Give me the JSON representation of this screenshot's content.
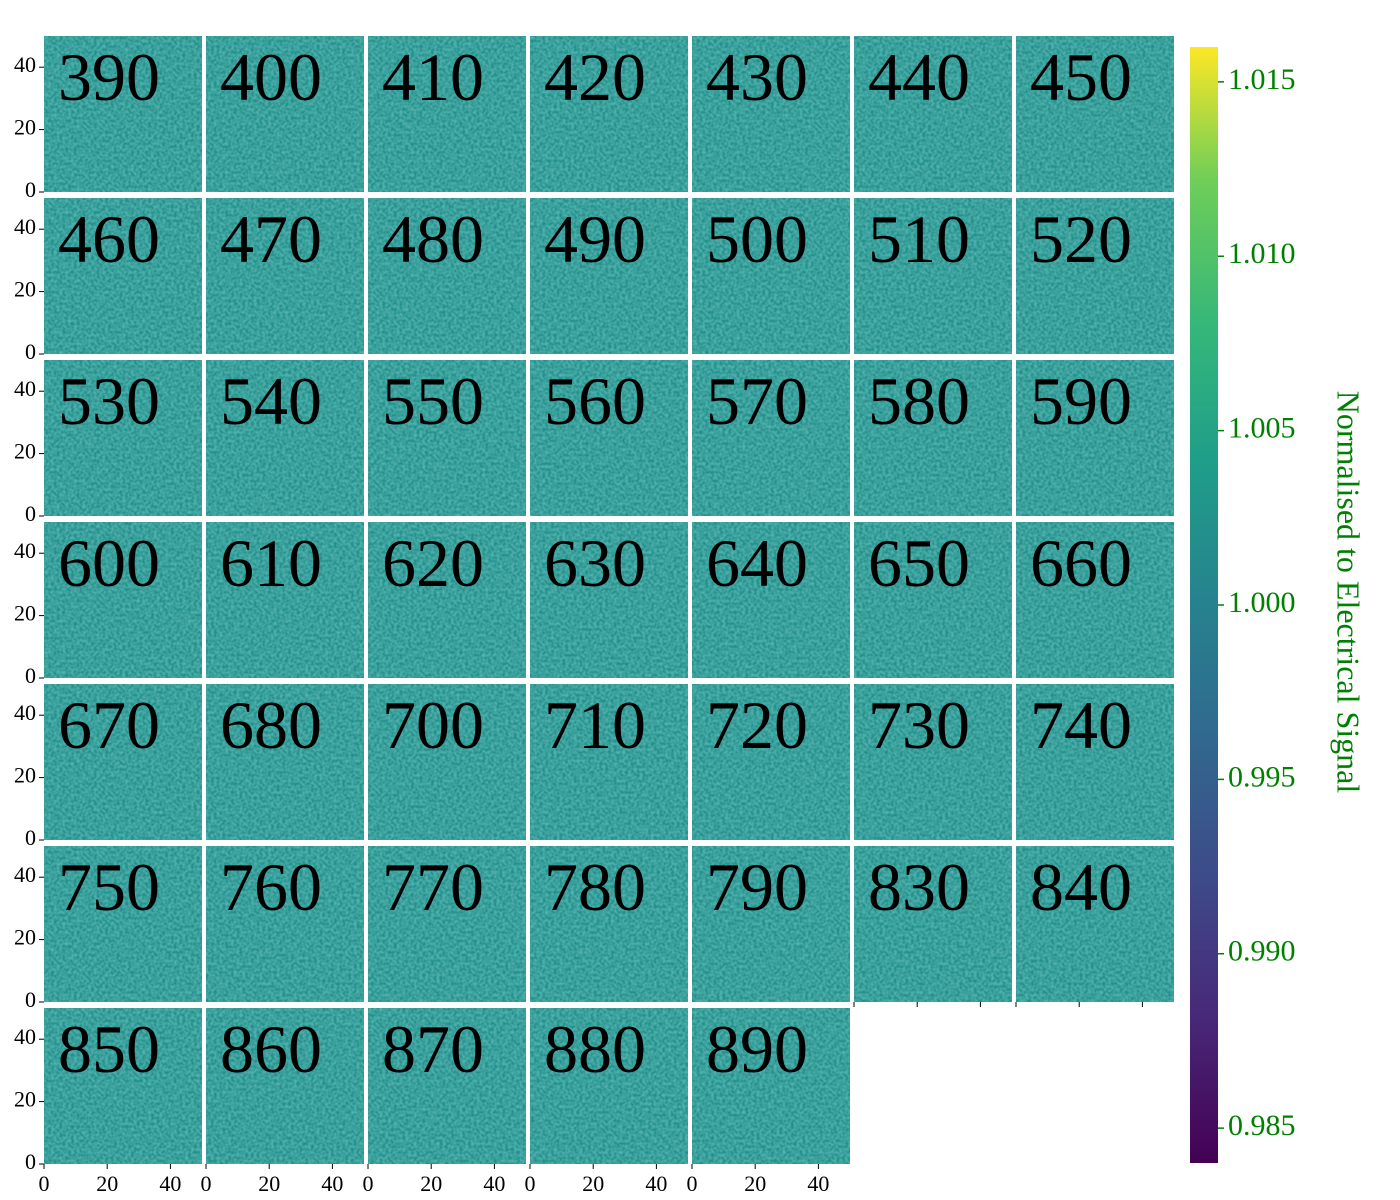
{
  "chart_data": {
    "type": "heatmap",
    "panels": [
      "390",
      "400",
      "410",
      "420",
      "430",
      "440",
      "450",
      "460",
      "470",
      "480",
      "490",
      "500",
      "510",
      "520",
      "530",
      "540",
      "550",
      "560",
      "570",
      "580",
      "590",
      "600",
      "610",
      "620",
      "630",
      "640",
      "650",
      "660",
      "670",
      "680",
      "700",
      "710",
      "720",
      "730",
      "740",
      "750",
      "760",
      "770",
      "780",
      "790",
      "830",
      "840",
      "850",
      "860",
      "870",
      "880",
      "890"
    ],
    "columns": 7,
    "xlim": [
      0,
      50
    ],
    "ylim": [
      0,
      50
    ],
    "xticks": [
      0,
      20,
      40
    ],
    "yticks": [
      0,
      20,
      40
    ],
    "colorbar_label": "Normalised to Electrical Signal",
    "clim": [
      0.984,
      1.016
    ],
    "cticks": [
      0.985,
      {
        "value": 0.99,
        "label": "0.990"
      },
      0.995,
      {
        "value": 1.0,
        "label": "1.000"
      },
      1.005,
      {
        "value": 1.01,
        "label": "1.010"
      },
      1.015
    ],
    "colormap": "viridis",
    "colorbar_color": "#008000"
  }
}
